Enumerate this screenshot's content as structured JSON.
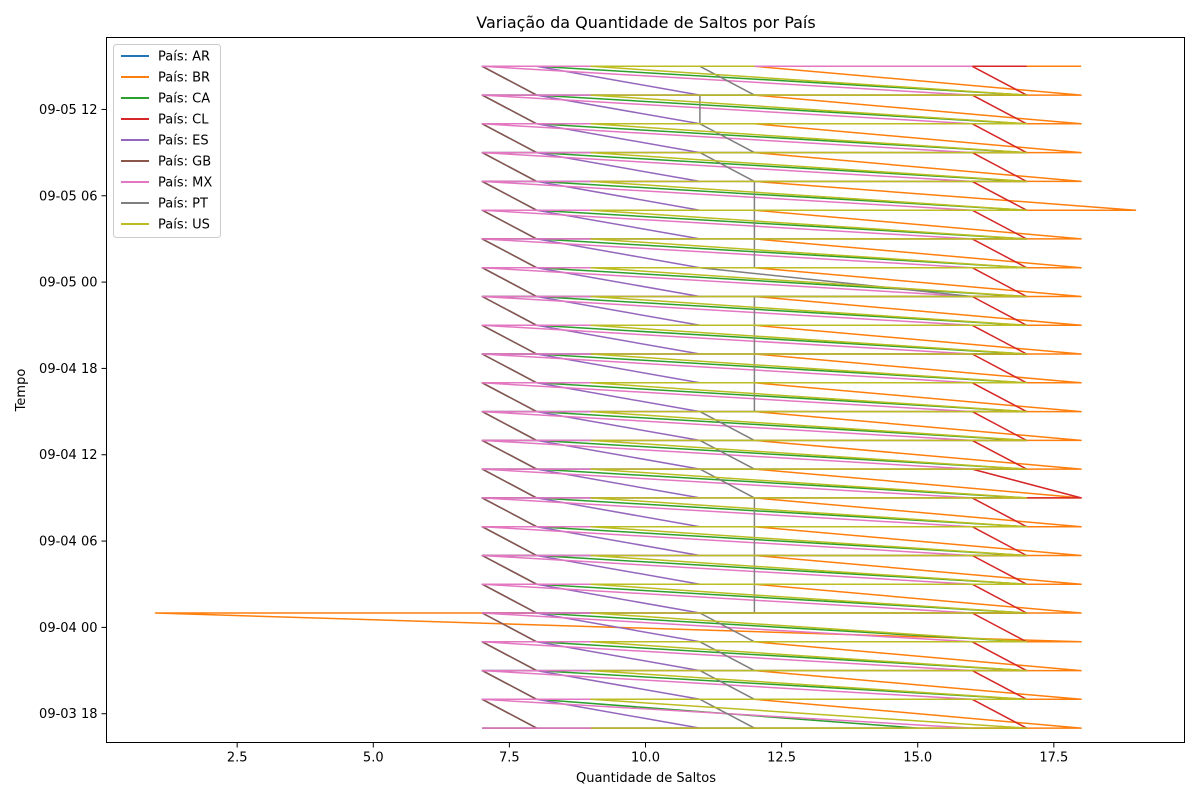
{
  "chart_data": {
    "type": "line",
    "title": "Variação da Quantidade de Saltos por País",
    "xlabel": "Quantidade de Saltos",
    "ylabel": "Tempo",
    "xlim": [
      0.1,
      19.9
    ],
    "x_ticks": [
      2.5,
      5.0,
      7.5,
      10.0,
      12.5,
      15.0,
      17.5
    ],
    "x_tick_labels": [
      "2.5",
      "5.0",
      "7.5",
      "10.0",
      "12.5",
      "15.0",
      "17.5"
    ],
    "y_axis": {
      "type": "time",
      "start": "2024-09-03T16:00",
      "end": "2024-09-05T17:00",
      "ticks": [
        "2024-09-03T18:00",
        "2024-09-04T00:00",
        "2024-09-04T06:00",
        "2024-09-04T12:00",
        "2024-09-04T18:00",
        "2024-09-05T00:00",
        "2024-09-05T06:00",
        "2024-09-05T12:00"
      ],
      "tick_labels": [
        "09-03 18",
        "09-04 00",
        "09-04 06",
        "09-04 12",
        "09-04 18",
        "09-05 00",
        "09-05 06",
        "09-05 12"
      ]
    },
    "times": [
      "2024-09-03T17:00",
      "2024-09-03T19:00",
      "2024-09-03T21:00",
      "2024-09-03T23:00",
      "2024-09-04T01:00",
      "2024-09-04T03:00",
      "2024-09-04T05:00",
      "2024-09-04T07:00",
      "2024-09-04T09:00",
      "2024-09-04T11:00",
      "2024-09-04T13:00",
      "2024-09-04T15:00",
      "2024-09-04T17:00",
      "2024-09-04T19:00",
      "2024-09-04T21:00",
      "2024-09-04T23:00",
      "2024-09-05T01:00",
      "2024-09-05T03:00",
      "2024-09-05T05:00",
      "2024-09-05T07:00",
      "2024-09-05T09:00",
      "2024-09-05T11:00",
      "2024-09-05T13:00",
      "2024-09-05T15:00"
    ],
    "series": [
      {
        "name": "País: AR",
        "color": "#1f77b4",
        "values": [
          [
            7,
            8
          ],
          [
            7,
            8
          ],
          [
            7,
            8
          ],
          [
            7,
            8
          ],
          [
            7,
            8
          ],
          [
            7,
            8
          ],
          [
            7,
            8
          ],
          [
            7,
            8
          ],
          [
            7,
            8
          ],
          [
            7,
            8
          ],
          [
            7,
            8
          ],
          [
            7,
            8
          ],
          [
            7,
            8
          ],
          [
            7,
            8
          ],
          [
            7,
            8
          ],
          [
            7,
            8
          ],
          [
            7,
            8
          ],
          [
            7,
            8
          ],
          [
            7,
            8
          ],
          [
            7,
            8
          ],
          [
            7,
            8
          ],
          [
            7,
            8
          ],
          [
            7,
            8
          ],
          [
            7,
            8
          ]
        ]
      },
      {
        "name": "País: BR",
        "color": "#ff7f0e",
        "values": [
          [
            12,
            18
          ],
          [
            12,
            18
          ],
          [
            12,
            18
          ],
          [
            12,
            18
          ],
          [
            1,
            18
          ],
          [
            12,
            18
          ],
          [
            12,
            18
          ],
          [
            12,
            18
          ],
          [
            12,
            18
          ],
          [
            12,
            18
          ],
          [
            12,
            18
          ],
          [
            12,
            18
          ],
          [
            12,
            18
          ],
          [
            12,
            18
          ],
          [
            12,
            18
          ],
          [
            12,
            18
          ],
          [
            12,
            18
          ],
          [
            12,
            18
          ],
          [
            12,
            19
          ],
          [
            12,
            18
          ],
          [
            12,
            18
          ],
          [
            12,
            18
          ],
          [
            12,
            18
          ],
          [
            12,
            18
          ]
        ]
      },
      {
        "name": "País: CA",
        "color": "#2ca02c",
        "values": [
          [
            8,
            15
          ],
          [
            8,
            17
          ],
          [
            8,
            17
          ],
          [
            8,
            17
          ],
          [
            8,
            17
          ],
          [
            8,
            17
          ],
          [
            8,
            17
          ],
          [
            8,
            17
          ],
          [
            8,
            17
          ],
          [
            8,
            17
          ],
          [
            8,
            17
          ],
          [
            8,
            17
          ],
          [
            8,
            17
          ],
          [
            8,
            17
          ],
          [
            8,
            17
          ],
          [
            8,
            17
          ],
          [
            8,
            17
          ],
          [
            8,
            17
          ],
          [
            8,
            17
          ],
          [
            8,
            17
          ],
          [
            8,
            17
          ],
          [
            8,
            17
          ],
          [
            8,
            17
          ],
          [
            8,
            17
          ]
        ]
      },
      {
        "name": "País: CL",
        "color": "#d62728",
        "values": [
          [
            16,
            17
          ],
          [
            16,
            17
          ],
          [
            16,
            17
          ],
          [
            16,
            17
          ],
          [
            16,
            17
          ],
          [
            16,
            17
          ],
          [
            16,
            17
          ],
          [
            16,
            17
          ],
          [
            16,
            18
          ],
          [
            16,
            17
          ],
          [
            16,
            17
          ],
          [
            16,
            17
          ],
          [
            16,
            17
          ],
          [
            16,
            17
          ],
          [
            16,
            17
          ],
          [
            16,
            17
          ],
          [
            16,
            17
          ],
          [
            16,
            17
          ],
          [
            16,
            17
          ],
          [
            16,
            17
          ],
          [
            16,
            17
          ],
          [
            16,
            17
          ],
          [
            16,
            17
          ],
          [
            16,
            17
          ]
        ]
      },
      {
        "name": "País: ES",
        "color": "#9467bd",
        "values": [
          [
            8,
            11
          ],
          [
            8,
            11
          ],
          [
            8,
            11
          ],
          [
            8,
            11
          ],
          [
            8,
            11
          ],
          [
            8,
            11
          ],
          [
            8,
            11
          ],
          [
            8,
            11
          ],
          [
            8,
            11
          ],
          [
            8,
            11
          ],
          [
            8,
            11
          ],
          [
            8,
            11
          ],
          [
            8,
            11
          ],
          [
            8,
            11
          ],
          [
            8,
            11
          ],
          [
            8,
            11
          ],
          [
            8,
            11
          ],
          [
            8,
            11
          ],
          [
            8,
            11
          ],
          [
            8,
            11
          ],
          [
            8,
            11
          ],
          [
            8,
            11
          ],
          [
            8,
            11
          ],
          [
            8,
            11
          ]
        ]
      },
      {
        "name": "País: GB",
        "color": "#8c564b",
        "values": [
          [
            7,
            8
          ],
          [
            7,
            8
          ],
          [
            7,
            8
          ],
          [
            7,
            8
          ],
          [
            7,
            8
          ],
          [
            7,
            8
          ],
          [
            7,
            8
          ],
          [
            7,
            8
          ],
          [
            7,
            8
          ],
          [
            7,
            8
          ],
          [
            7,
            8
          ],
          [
            7,
            8
          ],
          [
            7,
            8
          ],
          [
            7,
            8
          ],
          [
            7,
            8
          ],
          [
            7,
            8
          ],
          [
            7,
            8
          ],
          [
            7,
            8
          ],
          [
            7,
            8
          ],
          [
            7,
            8
          ],
          [
            7,
            8
          ],
          [
            7,
            8
          ],
          [
            7,
            8
          ],
          [
            7,
            8
          ]
        ]
      },
      {
        "name": "País: MX",
        "color": "#e377c2",
        "values": [
          [
            7,
            16
          ],
          [
            7,
            16
          ],
          [
            7,
            16
          ],
          [
            7,
            16
          ],
          [
            7,
            16
          ],
          [
            7,
            16
          ],
          [
            7,
            16
          ],
          [
            7,
            16
          ],
          [
            7,
            16
          ],
          [
            7,
            16
          ],
          [
            7,
            16
          ],
          [
            7,
            16
          ],
          [
            7,
            16
          ],
          [
            7,
            16
          ],
          [
            7,
            16
          ],
          [
            7,
            16
          ],
          [
            7,
            16
          ],
          [
            7,
            16
          ],
          [
            7,
            16
          ],
          [
            7,
            16
          ],
          [
            7,
            16
          ],
          [
            7,
            16
          ],
          [
            7,
            16
          ],
          [
            7,
            16
          ]
        ]
      },
      {
        "name": "País: PT",
        "color": "#7f7f7f",
        "values": [
          [
            11,
            12
          ],
          [
            11,
            12
          ],
          [
            11,
            12
          ],
          [
            11,
            12
          ],
          [
            11,
            12
          ],
          [
            12,
            12
          ],
          [
            12,
            12
          ],
          [
            12,
            12
          ],
          [
            12,
            12
          ],
          [
            11,
            12
          ],
          [
            11,
            12
          ],
          [
            11,
            12
          ],
          [
            12,
            12
          ],
          [
            12,
            12
          ],
          [
            12,
            12
          ],
          [
            12,
            16
          ],
          [
            11,
            12
          ],
          [
            12,
            12
          ],
          [
            12,
            12
          ],
          [
            12,
            12
          ],
          [
            11,
            12
          ],
          [
            11,
            11
          ],
          [
            11,
            12
          ],
          [
            11,
            12
          ]
        ]
      },
      {
        "name": "País: US",
        "color": "#bcbd22",
        "values": [
          [
            9,
            17
          ],
          [
            9,
            17
          ],
          [
            9,
            17
          ],
          [
            9,
            17
          ],
          [
            9,
            17
          ],
          [
            9,
            17
          ],
          [
            9,
            17
          ],
          [
            9,
            17
          ],
          [
            9,
            17
          ],
          [
            9,
            17
          ],
          [
            9,
            17
          ],
          [
            9,
            17
          ],
          [
            9,
            17
          ],
          [
            9,
            17
          ],
          [
            9,
            17
          ],
          [
            9,
            17
          ],
          [
            9,
            17
          ],
          [
            9,
            17
          ],
          [
            9,
            17
          ],
          [
            9,
            17
          ],
          [
            9,
            17
          ],
          [
            9,
            17
          ],
          [
            9,
            17
          ],
          [
            9,
            12
          ]
        ]
      }
    ],
    "grid": false,
    "legend": "upper-left"
  }
}
